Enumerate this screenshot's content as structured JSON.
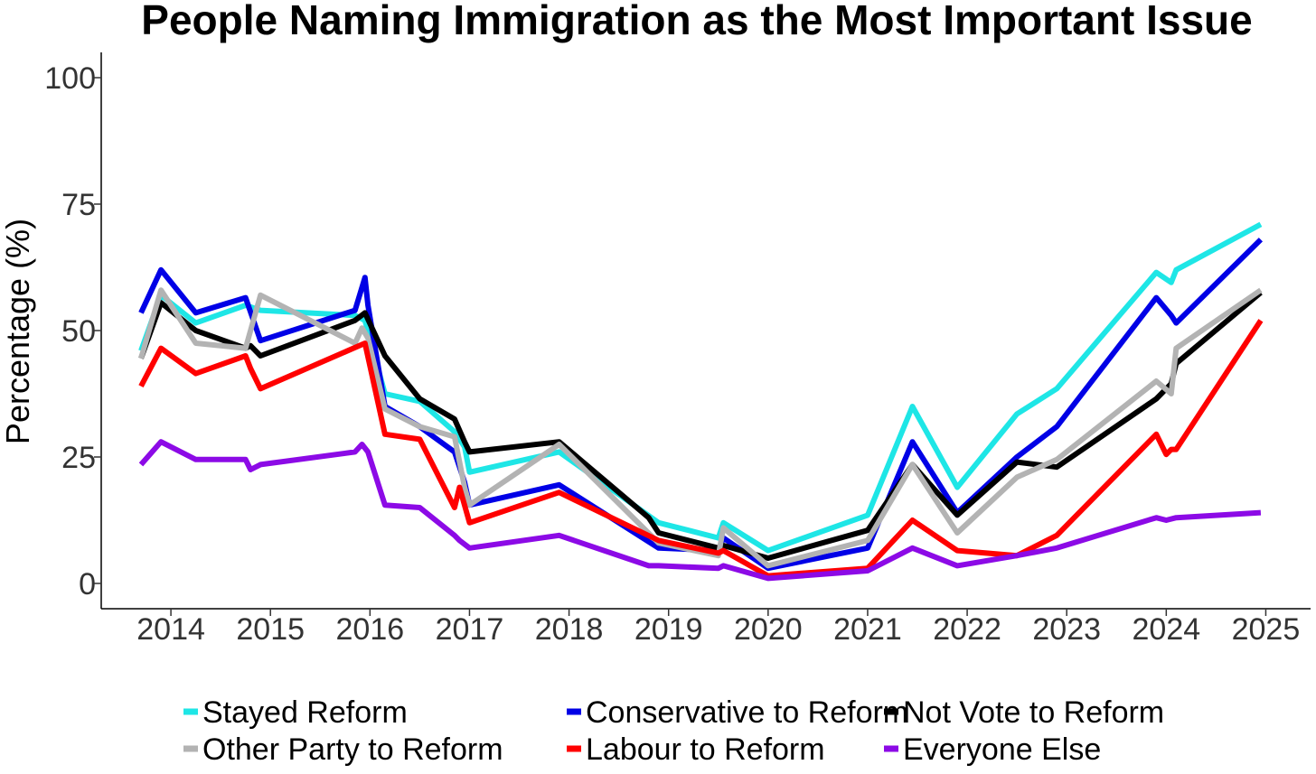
{
  "chart_data": {
    "type": "line",
    "title": "People Naming Immigration as the Most Important Issue",
    "xlabel": "",
    "ylabel": "Percentage (%)",
    "xlim": [
      2013.3,
      2025.45
    ],
    "ylim": [
      -5,
      105
    ],
    "x_ticks": [
      2014,
      2015,
      2016,
      2017,
      2018,
      2019,
      2020,
      2021,
      2022,
      2023,
      2024,
      2025
    ],
    "x_tick_labels": [
      "2014",
      "2015",
      "2016",
      "2017",
      "2018",
      "2019",
      "2020",
      "2021",
      "2022",
      "2023",
      "2024",
      "2025"
    ],
    "y_ticks": [
      0,
      25,
      50,
      75,
      100
    ],
    "y_tick_labels": [
      "0",
      "25",
      "50",
      "75",
      "100"
    ],
    "grid": false,
    "legend_position": "bottom",
    "series": [
      {
        "name": "Stayed Reform",
        "color": "#1ee6e6",
        "x": [
          2013.7,
          2013.9,
          2014.25,
          2014.75,
          2014.9,
          2015.85,
          2015.95,
          2016.15,
          2016.5,
          2016.85,
          2016.95,
          2017.0,
          2017.9,
          2018.9,
          2019.5,
          2019.55,
          2020.0,
          2021.0,
          2021.45,
          2021.9,
          2022.5,
          2022.9,
          2023.9,
          2024.05,
          2024.1,
          2024.95
        ],
        "y": [
          46,
          57,
          51.5,
          55,
          54,
          53,
          52,
          37.5,
          36,
          30,
          27,
          22,
          26,
          12,
          9,
          12,
          6.5,
          13.5,
          35,
          19,
          33.5,
          38.5,
          61.5,
          59.5,
          62,
          71
        ]
      },
      {
        "name": "Conservative to Reform",
        "color": "#0000e6",
        "x": [
          2013.7,
          2013.9,
          2014.25,
          2014.75,
          2014.9,
          2015.85,
          2015.95,
          2015.98,
          2016.15,
          2016.5,
          2016.85,
          2016.95,
          2017.0,
          2017.9,
          2018.9,
          2019.5,
          2019.55,
          2020.0,
          2021.0,
          2021.45,
          2021.9,
          2022.5,
          2022.9,
          2023.9,
          2024.05,
          2024.1,
          2024.95
        ],
        "y": [
          53.5,
          62,
          53.5,
          56.5,
          48,
          54,
          60.5,
          55,
          35,
          31,
          26,
          20,
          15.5,
          19.5,
          7,
          6.5,
          9,
          3,
          7,
          28,
          14,
          25,
          31,
          56.5,
          53,
          51.5,
          68
        ]
      },
      {
        "name": "Not Vote to Reform",
        "color": "#000000",
        "x": [
          2013.7,
          2013.9,
          2014.25,
          2014.75,
          2014.8,
          2014.9,
          2015.85,
          2015.95,
          2016.15,
          2016.5,
          2016.85,
          2016.95,
          2017.0,
          2017.9,
          2018.8,
          2018.9,
          2019.5,
          2019.55,
          2020.0,
          2021.0,
          2021.45,
          2021.9,
          2022.5,
          2022.9,
          2023.9,
          2024.05,
          2024.1,
          2024.95
        ],
        "y": [
          44.5,
          55.5,
          50,
          46.5,
          47,
          45,
          52,
          53.5,
          45,
          36.5,
          32.5,
          28,
          26,
          28,
          13,
          10,
          7,
          7.5,
          5,
          10.5,
          23.5,
          13.5,
          24,
          23,
          36.5,
          39.5,
          43.5,
          57.5
        ]
      },
      {
        "name": "Other Party to Reform",
        "color": "#b3b3b3",
        "x": [
          2013.7,
          2013.9,
          2014.25,
          2014.75,
          2014.9,
          2015.85,
          2015.92,
          2015.98,
          2016.15,
          2016.5,
          2016.85,
          2016.95,
          2017.0,
          2017.9,
          2018.9,
          2019.5,
          2019.55,
          2020.0,
          2021.0,
          2021.45,
          2021.9,
          2022.5,
          2022.9,
          2023.9,
          2024.05,
          2024.1,
          2024.95
        ],
        "y": [
          44.5,
          58,
          47.5,
          46.5,
          57,
          47.5,
          50.5,
          48.5,
          34.5,
          31,
          29,
          19,
          15.5,
          27.5,
          8,
          5.5,
          11,
          3.5,
          8.5,
          23.5,
          10,
          21,
          24.5,
          40,
          37.5,
          46.5,
          58
        ]
      },
      {
        "name": "Labour to Reform",
        "color": "#ff0000",
        "x": [
          2013.7,
          2013.9,
          2014.25,
          2014.75,
          2014.8,
          2014.9,
          2015.95,
          2016.15,
          2016.5,
          2016.85,
          2016.9,
          2017.0,
          2017.9,
          2018.9,
          2019.5,
          2019.55,
          2020.0,
          2021.0,
          2021.45,
          2021.9,
          2022.5,
          2022.9,
          2023.9,
          2024.0,
          2024.05,
          2024.1,
          2024.95
        ],
        "y": [
          39,
          46.5,
          41.5,
          45,
          42.5,
          38.5,
          47.5,
          29.5,
          28.5,
          15,
          19,
          12,
          18,
          8.5,
          6,
          6.5,
          1.5,
          3,
          12.5,
          6.5,
          5.5,
          9.5,
          29.5,
          25.5,
          26.5,
          26.5,
          52
        ]
      },
      {
        "name": "Everyone Else",
        "color": "#8c0ae6",
        "x": [
          2013.7,
          2013.9,
          2014.25,
          2014.75,
          2014.8,
          2014.9,
          2015.85,
          2015.92,
          2015.98,
          2016.15,
          2016.5,
          2016.85,
          2016.9,
          2017.0,
          2017.9,
          2018.8,
          2018.9,
          2019.5,
          2019.55,
          2020.0,
          2021.0,
          2021.45,
          2021.9,
          2022.5,
          2022.9,
          2023.9,
          2024.0,
          2024.1,
          2024.95
        ],
        "y": [
          23.5,
          28,
          24.5,
          24.5,
          22.5,
          23.5,
          26,
          27.5,
          26,
          15.5,
          15,
          9.5,
          8.5,
          7,
          9.5,
          3.5,
          3.5,
          3,
          3.5,
          1,
          2.5,
          7,
          3.5,
          5.5,
          7,
          13,
          12.5,
          13,
          14
        ]
      }
    ]
  }
}
